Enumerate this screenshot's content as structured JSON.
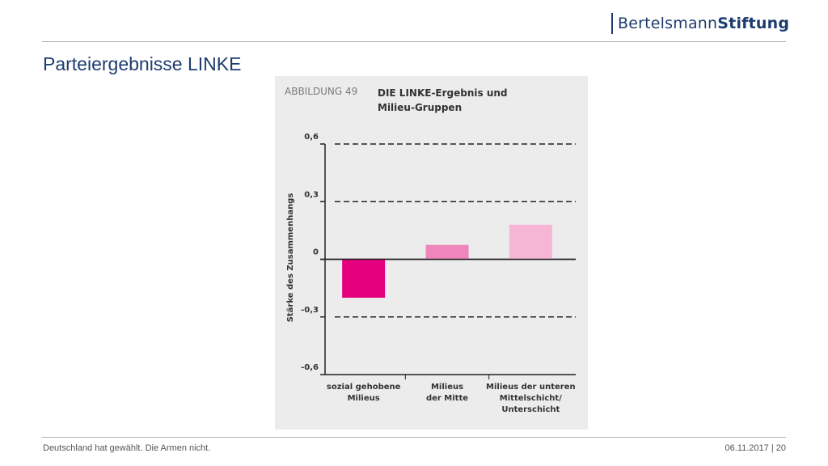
{
  "header": {
    "brand_regular": "Bertelsmann",
    "brand_bold": "Stiftung",
    "title": "Parteiergebnisse LINKE"
  },
  "figure": {
    "label": "ABBILDUNG 49",
    "title_line1": "DIE LINKE-Ergebnis und",
    "title_line2": "Milieu-Gruppen"
  },
  "chart_data": {
    "type": "bar",
    "categories": [
      [
        "sozial gehobene",
        "Milieus"
      ],
      [
        "Milieus",
        "der Mitte"
      ],
      [
        "Milieus der unteren",
        "Mittelschicht/",
        "Unterschicht"
      ]
    ],
    "values": [
      -0.2,
      0.075,
      0.18
    ],
    "colors": [
      "#e5007e",
      "#ee86bb",
      "#f6b5d4"
    ],
    "ylabel": "Stärke des Zusammenhangs",
    "ylim": [
      -0.6,
      0.6
    ],
    "yticks": [
      0.6,
      0.3,
      0,
      -0.3,
      -0.6
    ],
    "ytick_labels": [
      "0,6",
      "0,3",
      "0",
      "-0,3",
      "-0,6"
    ],
    "grid": "dashed"
  },
  "footer": {
    "left": "Deutschland hat gewählt. Die Armen nicht.",
    "right": "06.11.2017 | 20"
  }
}
